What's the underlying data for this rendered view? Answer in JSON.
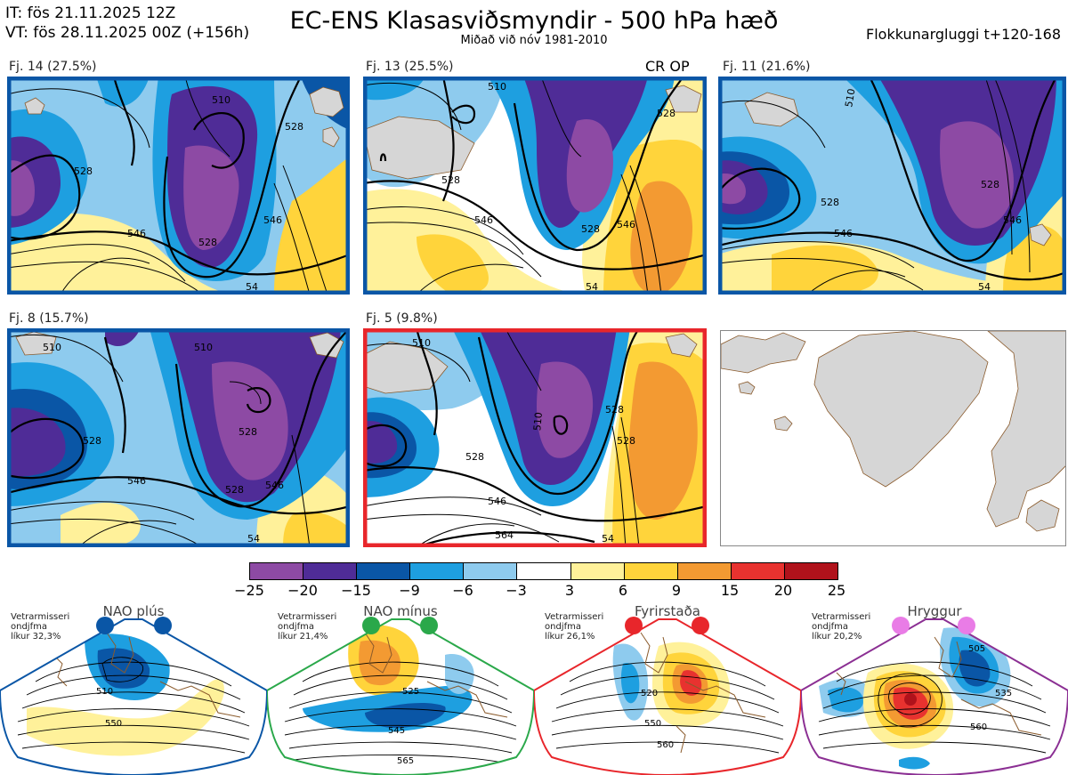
{
  "header": {
    "it_line": "IT: fös 21.11.2025 12Z",
    "vt_line": "VT: fös 28.11.2025 00Z  (+156h)",
    "title": "EC-ENS Klasasviðsmyndir - 500 hPa hæð",
    "subtitle": "Miðað við nóv 1981-2010",
    "window": "Flokkunargluggi t+120-168"
  },
  "panels": [
    {
      "label": "Fj. 14 (27.5%)",
      "frame_color": "#0a56a6",
      "contours": [
        "510",
        "528",
        "546",
        "528",
        "528",
        "546",
        "54"
      ]
    },
    {
      "label": "Fj. 13 (25.5%)",
      "frame_color": "#0a56a6",
      "tag": "CR OP",
      "contours": [
        "510",
        "528",
        "546",
        "528",
        "546",
        "528",
        "54"
      ]
    },
    {
      "label": "Fj. 11 (21.6%)",
      "frame_color": "#0a56a6",
      "contours": [
        "510",
        "528",
        "546",
        "528",
        "546",
        "54"
      ]
    },
    {
      "label": "Fj. 8 (15.7%)",
      "frame_color": "#0a56a6",
      "contours": [
        "510",
        "510",
        "528",
        "528",
        "546",
        "528",
        "546",
        "54"
      ]
    },
    {
      "label": "Fj. 5 (9.8%)",
      "frame_color": "#e8262b",
      "contours": [
        "510",
        "510",
        "528",
        "528",
        "546",
        "564",
        "528",
        "54"
      ]
    }
  ],
  "colorbar": {
    "colors": [
      "#8d4aa4",
      "#4f2c97",
      "#0a56a6",
      "#1e9fe0",
      "#8ecbee",
      "#ffffff",
      "#fff19a",
      "#ffd43b",
      "#f39a32",
      "#e8322f",
      "#b0121b"
    ],
    "ticks": [
      "−25",
      "−20",
      "−15",
      "−9",
      "−6",
      "−3",
      "3",
      "6",
      "9",
      "15",
      "20",
      "25"
    ]
  },
  "regimes": [
    {
      "name": "NAO plús",
      "text": [
        "Vetrarmisseri",
        "ondjfma",
        "líkur 32,3%"
      ],
      "color": "#0a56a6",
      "contours": [
        "510",
        "550"
      ]
    },
    {
      "name": "NAO mínus",
      "text": [
        "Vetrarmisseri",
        "ondjfma",
        "líkur 21,4%"
      ],
      "color": "#2aa84a",
      "contours": [
        "525",
        "545",
        "565"
      ]
    },
    {
      "name": "Fyrirstaða",
      "text": [
        "Vetrarmisseri",
        "ondjfma",
        "líkur 26,1%"
      ],
      "color": "#e8262b",
      "contours": [
        "520",
        "550",
        "560"
      ]
    },
    {
      "name": "Hryggur",
      "text": [
        "Vetrarmisseri",
        "ondjfma",
        "líkur 20,2%"
      ],
      "color": "#8b2f93",
      "dot_color": "#e97ce6",
      "contours": [
        "505",
        "535",
        "560"
      ]
    }
  ]
}
